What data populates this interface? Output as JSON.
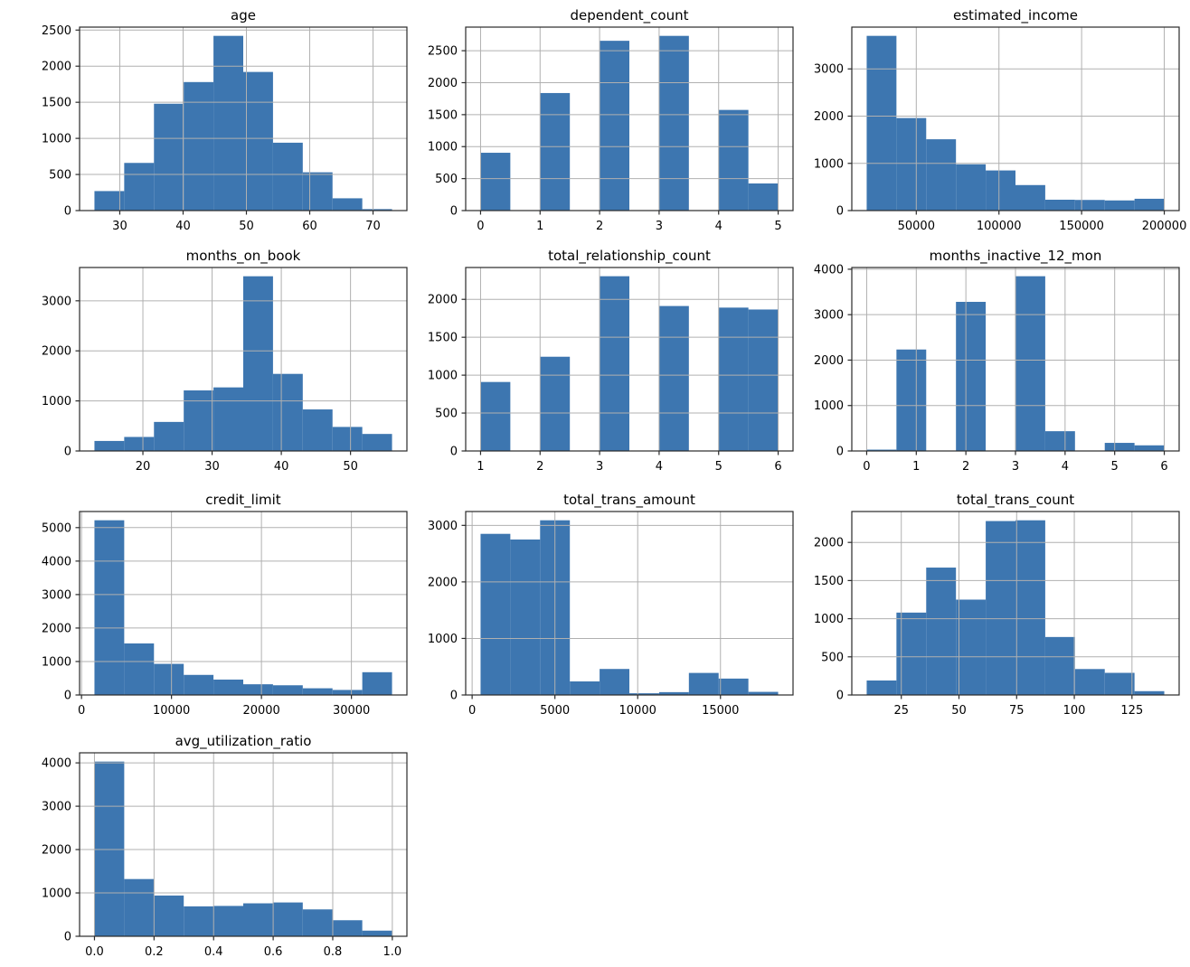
{
  "figure": {
    "background": "#ffffff",
    "bar_color": "#3d76b0",
    "grid_color": "#b0b0b0",
    "spine_color": "#2a2a2a",
    "text_color": "#000000",
    "grid_on": true,
    "legend": "none"
  },
  "chart_data": [
    {
      "type": "bar",
      "subtype": "histogram",
      "title": "age",
      "bin_min": 26,
      "bin_max": 73,
      "bins": 10,
      "values": [
        270,
        660,
        1480,
        1780,
        2420,
        1920,
        940,
        530,
        170,
        20
      ],
      "xticks": [
        30,
        40,
        50,
        60,
        70
      ],
      "xtick_labels": [
        "30",
        "40",
        "50",
        "60",
        "70"
      ],
      "yticks": [
        0,
        500,
        1000,
        1500,
        2000,
        2500
      ],
      "ytick_labels": [
        "0",
        "500",
        "1000",
        "1500",
        "2000",
        "2500"
      ],
      "xlim": [
        23.65,
        75.35
      ],
      "ylim": [
        0,
        2541
      ]
    },
    {
      "type": "bar",
      "subtype": "histogram",
      "title": "dependent_count",
      "bin_min": 0,
      "bin_max": 5,
      "bins": 10,
      "values": [
        904,
        0,
        1838,
        0,
        2655,
        0,
        2732,
        0,
        1574,
        424
      ],
      "xticks": [
        0,
        1,
        2,
        3,
        4,
        5
      ],
      "xtick_labels": [
        "0",
        "1",
        "2",
        "3",
        "4",
        "5"
      ],
      "yticks": [
        0,
        500,
        1000,
        1500,
        2000,
        2500
      ],
      "ytick_labels": [
        "0",
        "500",
        "1000",
        "1500",
        "2000",
        "2500"
      ],
      "xlim": [
        -0.25,
        5.25
      ],
      "ylim": [
        0,
        2869
      ]
    },
    {
      "type": "bar",
      "subtype": "histogram",
      "title": "estimated_income",
      "bin_min": 20000,
      "bin_max": 200000,
      "bins": 10,
      "values": [
        3700,
        1960,
        1510,
        980,
        850,
        540,
        230,
        225,
        215,
        250
      ],
      "xticks": [
        50000,
        100000,
        150000,
        200000
      ],
      "xtick_labels": [
        "50000",
        "100000",
        "150000",
        "200000"
      ],
      "yticks": [
        0,
        1000,
        2000,
        3000
      ],
      "ytick_labels": [
        "0",
        "1000",
        "2000",
        "3000"
      ],
      "xlim": [
        11000,
        209000
      ],
      "ylim": [
        0,
        3885
      ]
    },
    {
      "type": "bar",
      "subtype": "histogram",
      "title": "months_on_book",
      "bin_min": 13,
      "bin_max": 56,
      "bins": 10,
      "values": [
        200,
        280,
        580,
        1210,
        1270,
        3490,
        1540,
        830,
        480,
        340
      ],
      "xticks": [
        20,
        30,
        40,
        50
      ],
      "xtick_labels": [
        "20",
        "30",
        "40",
        "50"
      ],
      "yticks": [
        0,
        1000,
        2000,
        3000
      ],
      "ytick_labels": [
        "0",
        "1000",
        "2000",
        "3000"
      ],
      "xlim": [
        10.85,
        58.15
      ],
      "ylim": [
        0,
        3665
      ]
    },
    {
      "type": "bar",
      "subtype": "histogram",
      "title": "total_relationship_count",
      "bin_min": 1,
      "bin_max": 6,
      "bins": 10,
      "values": [
        910,
        0,
        1243,
        0,
        2305,
        0,
        1912,
        0,
        1891,
        1866
      ],
      "xticks": [
        1,
        2,
        3,
        4,
        5,
        6
      ],
      "xtick_labels": [
        "1",
        "2",
        "3",
        "4",
        "5",
        "6"
      ],
      "yticks": [
        0,
        500,
        1000,
        1500,
        2000
      ],
      "ytick_labels": [
        "0",
        "500",
        "1000",
        "1500",
        "2000"
      ],
      "xlim": [
        0.75,
        6.25
      ],
      "ylim": [
        0,
        2420
      ]
    },
    {
      "type": "bar",
      "subtype": "histogram",
      "title": "months_inactive_12_mon",
      "bin_min": 0,
      "bin_max": 6,
      "bins": 10,
      "values": [
        29,
        2233,
        0,
        3282,
        0,
        3846,
        435,
        0,
        178,
        124
      ],
      "xticks": [
        0,
        1,
        2,
        3,
        4,
        5,
        6
      ],
      "xtick_labels": [
        "0",
        "1",
        "2",
        "3",
        "4",
        "5",
        "6"
      ],
      "yticks": [
        0,
        1000,
        2000,
        3000,
        4000
      ],
      "ytick_labels": [
        "0",
        "1000",
        "2000",
        "3000",
        "4000"
      ],
      "xlim": [
        -0.3,
        6.3
      ],
      "ylim": [
        0,
        4038
      ]
    },
    {
      "type": "bar",
      "subtype": "histogram",
      "title": "credit_limit",
      "bin_min": 1438,
      "bin_max": 34516,
      "bins": 10,
      "values": [
        5220,
        1540,
        930,
        600,
        460,
        320,
        290,
        200,
        150,
        680
      ],
      "xticks": [
        0,
        10000,
        20000,
        30000
      ],
      "xtick_labels": [
        "0",
        "10000",
        "20000",
        "30000"
      ],
      "yticks": [
        0,
        1000,
        2000,
        3000,
        4000,
        5000
      ],
      "ytick_labels": [
        "0",
        "1000",
        "2000",
        "3000",
        "4000",
        "5000"
      ],
      "xlim": [
        -216,
        36170
      ],
      "ylim": [
        0,
        5481
      ]
    },
    {
      "type": "bar",
      "subtype": "histogram",
      "title": "total_trans_amount",
      "bin_min": 510,
      "bin_max": 18484,
      "bins": 10,
      "values": [
        2850,
        2750,
        3090,
        240,
        460,
        30,
        50,
        390,
        290,
        55
      ],
      "xticks": [
        0,
        5000,
        10000,
        15000
      ],
      "xtick_labels": [
        "0",
        "5000",
        "10000",
        "15000"
      ],
      "yticks": [
        0,
        1000,
        2000,
        3000
      ],
      "ytick_labels": [
        "0",
        "1000",
        "2000",
        "3000"
      ],
      "xlim": [
        -389,
        19383
      ],
      "ylim": [
        0,
        3245
      ]
    },
    {
      "type": "bar",
      "subtype": "histogram",
      "title": "total_trans_count",
      "bin_min": 10,
      "bin_max": 139,
      "bins": 10,
      "values": [
        190,
        1080,
        1670,
        1250,
        2280,
        2290,
        760,
        340,
        290,
        50
      ],
      "xticks": [
        25,
        50,
        75,
        100,
        125
      ],
      "xtick_labels": [
        "25",
        "50",
        "75",
        "100",
        "125"
      ],
      "yticks": [
        0,
        500,
        1000,
        1500,
        2000
      ],
      "ytick_labels": [
        "0",
        "500",
        "1000",
        "1500",
        "2000"
      ],
      "xlim": [
        3.55,
        145.45
      ],
      "ylim": [
        0,
        2405
      ]
    },
    {
      "type": "bar",
      "subtype": "histogram",
      "title": "avg_utilization_ratio",
      "bin_min": 0,
      "bin_max": 0.999,
      "bins": 10,
      "values": [
        4030,
        1320,
        940,
        690,
        700,
        760,
        780,
        620,
        370,
        130
      ],
      "xticks": [
        0.0,
        0.2,
        0.4,
        0.6,
        0.8,
        1.0
      ],
      "xtick_labels": [
        "0.0",
        "0.2",
        "0.4",
        "0.6",
        "0.8",
        "1.0"
      ],
      "yticks": [
        0,
        1000,
        2000,
        3000,
        4000
      ],
      "ytick_labels": [
        "0",
        "1000",
        "2000",
        "3000",
        "4000"
      ],
      "xlim": [
        -0.05,
        1.049
      ],
      "ylim": [
        0,
        4232
      ]
    }
  ]
}
